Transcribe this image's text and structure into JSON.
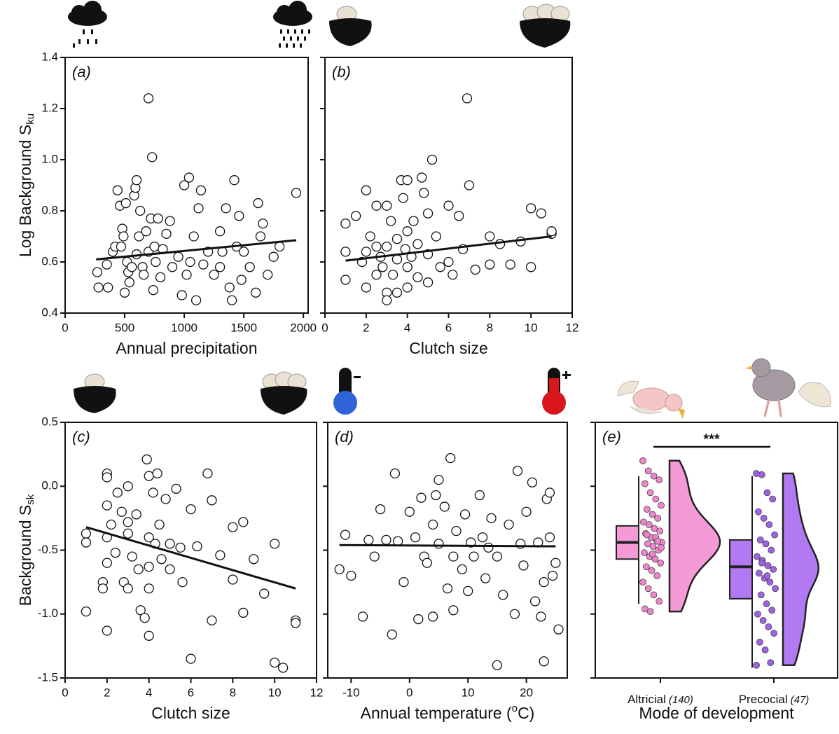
{
  "chart_data": [
    {
      "type": "scatter",
      "panel_label": "(a)",
      "x_label": "Annual precipitation",
      "y_label": "Log Background S",
      "y_label_sub": "ku",
      "xlim": [
        0,
        2040
      ],
      "ylim": [
        0.4,
        1.4
      ],
      "xticks": [
        0,
        500,
        1000,
        1500,
        2000
      ],
      "yticks": [
        0.4,
        0.6,
        0.8,
        {
          "value": 1,
          "label": "1.0"
        },
        1.2,
        1.4
      ],
      "ytick_labels": true,
      "x": [
        270,
        280,
        350,
        360,
        400,
        420,
        440,
        460,
        470,
        480,
        490,
        500,
        510,
        520,
        530,
        540,
        560,
        580,
        590,
        600,
        600,
        620,
        630,
        650,
        660,
        680,
        700,
        700,
        720,
        730,
        740,
        750,
        760,
        780,
        800,
        820,
        850,
        880,
        900,
        950,
        980,
        1000,
        1020,
        1040,
        1050,
        1080,
        1100,
        1120,
        1140,
        1160,
        1200,
        1250,
        1300,
        1320,
        1350,
        1380,
        1420,
        1440,
        1460,
        1480,
        1500,
        1550,
        1600,
        1620,
        1640,
        1660,
        1700,
        1750,
        1800,
        1940,
        1400,
        1300
      ],
      "values": [
        0.56,
        0.5,
        0.59,
        0.5,
        0.64,
        0.66,
        0.88,
        0.82,
        0.66,
        0.73,
        0.7,
        0.48,
        0.83,
        0.6,
        0.56,
        0.52,
        0.58,
        0.86,
        0.89,
        0.92,
        0.63,
        0.7,
        0.8,
        0.58,
        0.55,
        0.72,
        1.24,
        0.64,
        0.77,
        1.01,
        0.49,
        0.66,
        0.6,
        0.77,
        0.54,
        0.65,
        0.71,
        0.76,
        0.58,
        0.62,
        0.47,
        0.9,
        0.55,
        0.93,
        0.6,
        0.7,
        0.45,
        0.81,
        0.88,
        0.59,
        0.64,
        0.55,
        0.72,
        0.64,
        0.81,
        0.5,
        0.92,
        0.66,
        0.78,
        0.53,
        0.64,
        0.58,
        0.48,
        0.83,
        0.7,
        0.75,
        0.55,
        0.62,
        0.66,
        0.87,
        0.45,
        0.58
      ],
      "fit": {
        "x": [
          260,
          1940
        ],
        "values": [
          0.61,
          0.685
        ]
      }
    },
    {
      "type": "scatter",
      "panel_label": "(b)",
      "x_label": "Clutch size",
      "xlim": [
        0,
        12
      ],
      "ylim": [
        0.4,
        1.4
      ],
      "xticks": [
        0,
        2,
        4,
        6,
        8,
        10,
        12
      ],
      "yticks": [
        0.4,
        0.6,
        0.8,
        1,
        1.2,
        1.4
      ],
      "ytick_labels": false,
      "x": [
        1,
        1,
        1,
        1.5,
        1.8,
        2,
        2,
        2,
        2.2,
        2.5,
        2.5,
        2.7,
        2.8,
        3,
        3,
        3,
        3,
        3.2,
        3.3,
        3.5,
        3.5,
        3.7,
        3.8,
        3.9,
        4,
        4,
        4,
        4,
        4.2,
        4.3,
        4.5,
        4.5,
        4.7,
        4.8,
        5,
        5,
        5,
        5.2,
        5.4,
        5.6,
        6,
        6,
        6.2,
        6.5,
        6.7,
        6.9,
        7,
        7.3,
        8,
        8,
        8.5,
        9,
        9.5,
        10,
        10,
        10.5,
        11,
        11,
        2.5,
        3.5
      ],
      "values": [
        0.53,
        0.64,
        0.75,
        0.78,
        0.6,
        0.88,
        0.64,
        0.5,
        0.7,
        0.55,
        0.82,
        0.62,
        0.58,
        0.82,
        0.66,
        0.48,
        0.45,
        0.76,
        0.55,
        0.61,
        0.69,
        0.92,
        0.85,
        0.65,
        0.92,
        0.58,
        0.5,
        0.72,
        0.62,
        0.76,
        0.54,
        0.67,
        0.93,
        0.87,
        0.79,
        0.63,
        0.52,
        1.0,
        0.7,
        0.58,
        0.82,
        0.6,
        0.55,
        0.78,
        0.65,
        1.24,
        0.9,
        0.57,
        0.7,
        0.59,
        0.67,
        0.59,
        0.68,
        0.58,
        0.81,
        0.79,
        0.71,
        0.72,
        0.66,
        0.48
      ],
      "fit": {
        "x": [
          1,
          11
        ],
        "values": [
          0.605,
          0.7
        ]
      }
    },
    {
      "type": "scatter",
      "panel_label": "(c)",
      "x_label": "Clutch size",
      "y_label": "Background S",
      "y_label_sub": "sk",
      "xlim": [
        0,
        12
      ],
      "ylim": [
        -1.5,
        0.5
      ],
      "xticks": [
        0,
        2,
        4,
        6,
        8,
        10,
        12
      ],
      "yticks": [
        -1.5,
        {
          "value": -1,
          "label": "-1.0"
        },
        -0.5,
        {
          "value": 0,
          "label": "0.0"
        },
        0.5
      ],
      "ytick_labels": true,
      "x": [
        1,
        1,
        1,
        1.8,
        1.8,
        2,
        2,
        2,
        2,
        2,
        2,
        2.2,
        2.4,
        2.5,
        2.7,
        2.8,
        3,
        3,
        3,
        3.2,
        3.4,
        3.5,
        3.6,
        3.8,
        3.9,
        4,
        4,
        4,
        4,
        4,
        4.2,
        4.3,
        4.5,
        4.6,
        4.8,
        5,
        5,
        5.3,
        5.5,
        5.6,
        6,
        6,
        6.3,
        6.8,
        7,
        7,
        7.4,
        8,
        8,
        8.5,
        8.5,
        9,
        9.5,
        10,
        10,
        10.4,
        11,
        11,
        4.4,
        3
      ],
      "values": [
        -0.37,
        -0.44,
        -0.98,
        -0.75,
        -0.8,
        0.1,
        0.07,
        -0.15,
        -0.4,
        -0.6,
        -1.13,
        -0.3,
        -0.52,
        -0.05,
        -0.2,
        -0.75,
        -0.8,
        0.0,
        -0.37,
        -0.55,
        -0.22,
        -0.65,
        -0.97,
        -1.03,
        0.21,
        -0.4,
        -0.8,
        -1.17,
        -0.63,
        0.08,
        -0.05,
        -0.45,
        -0.3,
        -0.57,
        -0.1,
        -0.45,
        -0.65,
        -0.02,
        -0.48,
        -0.75,
        -0.18,
        -1.35,
        -0.47,
        0.1,
        -0.11,
        -1.05,
        -0.54,
        -0.32,
        -0.73,
        -0.28,
        -0.99,
        -0.57,
        -0.84,
        -0.45,
        -1.38,
        -1.42,
        -1.05,
        -1.07,
        0.1,
        -0.28
      ],
      "fit": {
        "x": [
          1,
          11
        ],
        "values": [
          -0.32,
          -0.8
        ]
      }
    },
    {
      "type": "scatter",
      "panel_label": "(d)",
      "x_label": "Annual temperature (",
      "x_label_sup": "o",
      "x_label_end": "C)",
      "xlim": [
        -14,
        27
      ],
      "ylim": [
        -1.5,
        0.5
      ],
      "xticks": [
        -10,
        0,
        10,
        20
      ],
      "yticks": [
        -1.5,
        -1,
        -0.5,
        0,
        0.5
      ],
      "ytick_labels": false,
      "x": [
        -12,
        -11,
        -10,
        -8,
        -7,
        -6,
        -5,
        -4,
        -3,
        -2.5,
        -2,
        -1,
        0,
        1,
        1.5,
        2,
        2.5,
        3,
        4,
        4,
        4.5,
        5,
        5,
        6,
        6.5,
        7,
        7.5,
        7.5,
        8,
        9,
        9.5,
        10,
        10.5,
        11,
        12,
        12.5,
        13,
        14,
        15,
        15,
        16,
        17,
        18,
        18.5,
        19,
        19.5,
        20,
        21,
        21.5,
        22,
        22.5,
        23,
        23,
        23.5,
        24,
        24,
        24.5,
        25,
        25.5,
        13.5
      ],
      "values": [
        -0.65,
        -0.38,
        -0.7,
        -1.02,
        -0.42,
        -0.55,
        -0.18,
        -0.42,
        -1.16,
        0.1,
        -0.43,
        -0.75,
        -0.2,
        -0.4,
        -1.04,
        -0.09,
        -0.55,
        -0.6,
        -1.02,
        -0.3,
        -0.07,
        0.05,
        -0.45,
        -0.16,
        -0.8,
        0.22,
        -0.55,
        -0.97,
        -0.35,
        -0.65,
        -0.22,
        -0.82,
        -0.44,
        -0.55,
        -0.07,
        -0.4,
        -0.72,
        -0.25,
        -1.4,
        -0.55,
        -0.85,
        -0.3,
        -1.0,
        0.12,
        -0.45,
        -0.62,
        -0.2,
        0.03,
        -0.9,
        -0.44,
        -1.02,
        -1.37,
        -0.75,
        -0.1,
        -0.4,
        -0.05,
        -0.7,
        -0.6,
        -1.12,
        -0.48
      ],
      "fit": {
        "x": [
          -12,
          25
        ],
        "values": [
          -0.46,
          -0.47
        ]
      }
    },
    {
      "type": "raincloud",
      "panel_label": "(e)",
      "x_label": "Mode of development",
      "ylim": [
        -1.5,
        0.5
      ],
      "yticks": [
        -1.5,
        -1,
        -0.5,
        0,
        0.5
      ],
      "ytick_labels": false,
      "sig": "***",
      "groups": [
        {
          "name": "Altricial",
          "n_label": "(140)",
          "color": "#f49ad6",
          "point_color": "#ef86cc",
          "box": {
            "whisker_low": -0.92,
            "q1": -0.57,
            "median": -0.44,
            "q3": -0.31,
            "whisker_high": 0.08
          },
          "values": [
            0.2,
            0.12,
            0.08,
            0.05,
            0.02,
            -0.05,
            -0.1,
            -0.15,
            -0.18,
            -0.22,
            -0.25,
            -0.28,
            -0.3,
            -0.33,
            -0.35,
            -0.37,
            -0.4,
            -0.42,
            -0.44,
            -0.45,
            -0.47,
            -0.5,
            -0.52,
            -0.55,
            -0.57,
            -0.6,
            -0.63,
            -0.66,
            -0.7,
            -0.75,
            -0.8,
            -0.85,
            -0.9,
            -0.96,
            -0.98,
            -0.4,
            -0.48,
            -0.38,
            -0.53,
            -0.43
          ]
        },
        {
          "name": "Precocial",
          "n_label": "(47)",
          "color": "#b27af2",
          "point_color": "#9f62e6",
          "box": {
            "whisker_low": -1.42,
            "q1": -0.88,
            "median": -0.63,
            "q3": -0.42,
            "whisker_high": 0.08
          },
          "values": [
            0.1,
            0.09,
            -0.05,
            -0.1,
            -0.2,
            -0.25,
            -0.3,
            -0.38,
            -0.42,
            -0.45,
            -0.5,
            -0.55,
            -0.58,
            -0.62,
            -0.65,
            -0.68,
            -0.72,
            -0.75,
            -0.8,
            -0.85,
            -0.92,
            -0.97,
            -1.0,
            -1.05,
            -1.1,
            -1.15,
            -1.22,
            -1.28,
            -1.38,
            -1.4,
            -0.6,
            -0.7
          ]
        }
      ]
    }
  ]
}
